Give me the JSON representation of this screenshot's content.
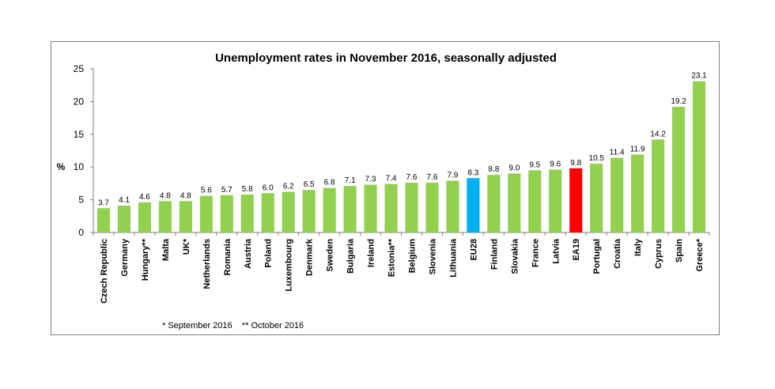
{
  "chart_data": {
    "type": "bar",
    "title": "Unemployment rates in November 2016, seasonally adjusted",
    "ylabel": "%",
    "xlabel": "",
    "ylim": [
      0,
      25
    ],
    "yticks": [
      "0",
      "5",
      "10",
      "15",
      "20",
      "25"
    ],
    "grid": false,
    "legend": "none",
    "categories": [
      "Czech Republic",
      "Germany",
      "Hungary**",
      "Malta",
      "UK*",
      "Netherlands",
      "Romania",
      "Austria",
      "Poland",
      "Luxembourg",
      "Denmark",
      "Sweden",
      "Bulgaria",
      "Ireland",
      "Estonia**",
      "Belgium",
      "Slovenia",
      "Lithuania",
      "EU28",
      "Finland",
      "Slovakia",
      "France",
      "Latvia",
      "EA19",
      "Portugal",
      "Croatia",
      "Italy",
      "Cyprus",
      "Spain",
      "Greece*"
    ],
    "values": [
      3.7,
      4.1,
      4.6,
      4.8,
      4.8,
      5.6,
      5.7,
      5.8,
      6.0,
      6.2,
      6.5,
      6.8,
      7.1,
      7.3,
      7.4,
      7.6,
      7.6,
      7.9,
      8.3,
      8.8,
      9.0,
      9.5,
      9.6,
      9.8,
      10.5,
      11.4,
      11.9,
      14.2,
      19.2,
      23.1
    ],
    "value_labels": [
      "3.7",
      "4.1",
      "4.6",
      "4.8",
      "4.8",
      "5.6",
      "5.7",
      "5.8",
      "6.0",
      "6.2",
      "6.5",
      "6.8",
      "7.1",
      "7.3",
      "7.4",
      "7.6",
      "7.6",
      "7.9",
      "8.3",
      "8.8",
      "9.0",
      "9.5",
      "9.6",
      "9.8",
      "10.5",
      "11.4",
      "11.9",
      "14.2",
      "19.2",
      "23.1"
    ],
    "colors": {
      "default": "#92d050",
      "EU28": "#00b0f0",
      "EA19": "#ff0000",
      "axis": "#808080"
    },
    "footnote": "* September 2016    ** October 2016"
  }
}
